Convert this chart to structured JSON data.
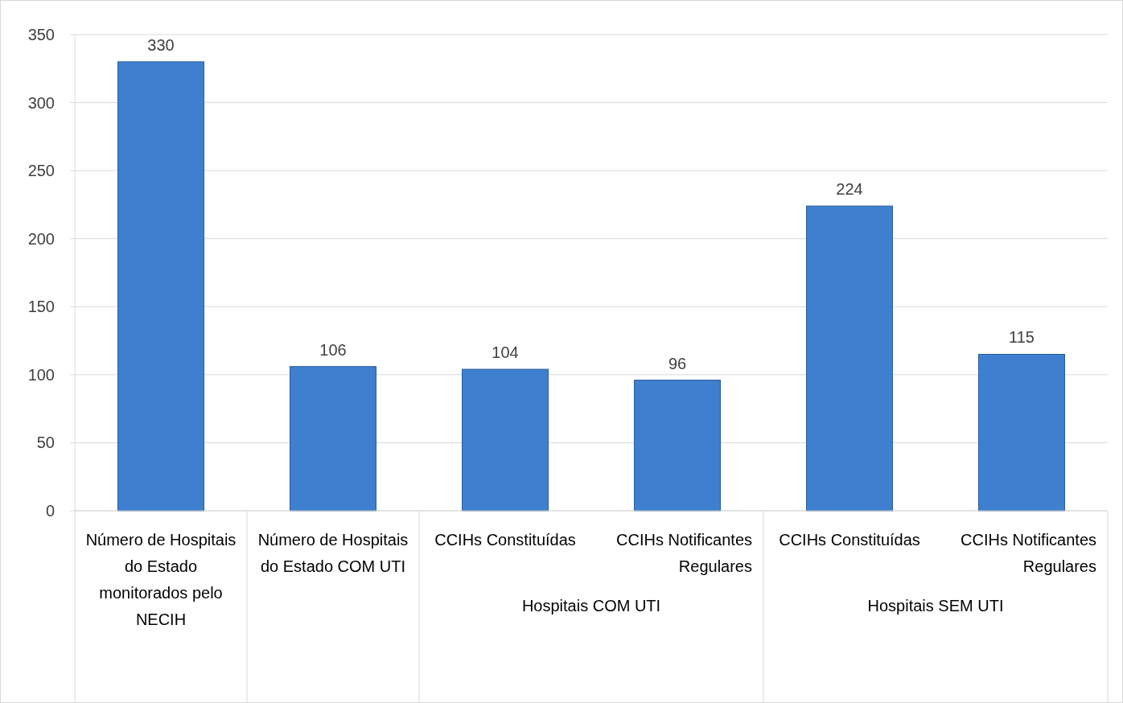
{
  "chart_data": {
    "type": "bar",
    "categories": [
      "Número de Hospitais do Estado monitorados pelo NECIH",
      "Número de Hospitais do Estado COM UTI",
      "CCIHs Constituídas",
      "CCIHs Notificantes Regulares",
      "CCIHs Constituídas",
      "CCIHs Notificantes Regulares"
    ],
    "values": [
      330,
      106,
      104,
      96,
      224,
      115
    ],
    "color": "#3f7fcf",
    "ylim": [
      0,
      350
    ],
    "yticks": [
      0,
      50,
      100,
      150,
      200,
      250,
      300,
      350
    ],
    "grid": "y",
    "data_labels": true,
    "annotations": [
      "Hospitais COM UTI",
      "Hospitais SEM UTI"
    ]
  }
}
